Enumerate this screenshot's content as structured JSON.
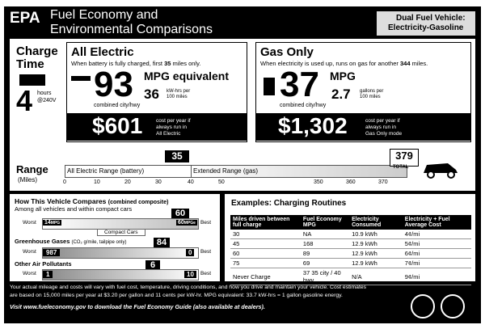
{
  "header": {
    "agency": "EPA",
    "title_line1": "Fuel Economy and",
    "title_line2": "Environmental Comparisons",
    "vehicle_type": "Dual Fuel Vehicle:",
    "fuel": "Electricity-Gasoline"
  },
  "charge_time": {
    "title_line1": "Charge",
    "title_line2": "Time",
    "hours": "4",
    "unit": "hours",
    "voltage": "@240V"
  },
  "all_electric": {
    "title": "All Electric",
    "note_before": "When battery is fully charged, first",
    "note_miles": "35",
    "note_after": "miles only.",
    "mpge": "93",
    "mpge_unit": "MPG equivalent",
    "kwh": "36",
    "kwh_unit_line1": "kW-hrs per",
    "kwh_unit_line2": "100 miles",
    "combined": "combined city/hwy",
    "cost": "$601",
    "cost_note_line1": "cost per year if",
    "cost_note_line2": "always run in",
    "cost_note_line3": "All Electric"
  },
  "gas_only": {
    "title": "Gas Only",
    "note_before": "When electricity is used up, runs on gas for another",
    "note_miles": "344",
    "note_after": "miles.",
    "mpg": "37",
    "mpg_unit": "MPG",
    "gallons": "2.7",
    "gallons_unit_line1": "gallons per",
    "gallons_unit_line2": "100 miles",
    "combined": "combined city/hwy",
    "cost": "$1,302",
    "cost_note_line1": "cost per year if",
    "cost_note_line2": "always run in",
    "cost_note_line3": "Gas Only mode"
  },
  "range": {
    "title": "Range",
    "unit": "(Miles)",
    "electric_label": "All Electric Range (battery)",
    "gas_label": "Extended Range (gas)",
    "electric_marker": "35",
    "total_marker": "379",
    "total_label": "TOTAL",
    "ticks": [
      "0",
      "10",
      "20",
      "30",
      "40",
      "50",
      "350",
      "360",
      "370"
    ]
  },
  "compare": {
    "title": "How This Vehicle Compares",
    "title_note": "(combined composite)",
    "subtitle": "Among all vehicles and within compact cars",
    "fuel": {
      "worst_label": "Worst",
      "worst": "14",
      "worst_unit": "MPG",
      "best": "60",
      "best_unit": "MPGe",
      "best_label": "Best",
      "marker": "60",
      "class": "Compact Cars"
    },
    "ghg": {
      "title": "Greenhouse Gases",
      "title_note": "(CO₂ g/mile, tailpipe only)",
      "worst_label": "Worst",
      "worst": "987",
      "best": "0",
      "best_label": "Best",
      "marker": "84"
    },
    "air": {
      "title": "Other Air Pollutants",
      "worst_label": "Worst",
      "worst": "1",
      "best": "10",
      "best_label": "Best",
      "marker": "6"
    }
  },
  "routines": {
    "title": "Examples: Charging Routines",
    "headers": [
      "Miles driven between full charge",
      "Fuel Economy MPG",
      "Electricity Consumed",
      "Electricity + Fuel Average Cost"
    ],
    "rows": [
      [
        "30",
        "NA",
        "10.9 kWh",
        "4¢/mi"
      ],
      [
        "45",
        "168",
        "12.9 kWh",
        "5¢/mi"
      ],
      [
        "60",
        "89",
        "12.9 kWh",
        "6¢/mi"
      ],
      [
        "75",
        "69",
        "12.9 kWh",
        "7¢/mi"
      ],
      [
        "Never Charge",
        "37 35 city / 40 hwy",
        "N/A",
        "9¢/mi"
      ]
    ]
  },
  "footer": {
    "line1": "Your actual mileage and costs will vary with fuel cost, temperature, driving conditions, and how you drive and maintain your vehicle. Cost estimates",
    "line2": "are based on 15,000 miles per year at $3.20 per gallon and 11 cents per kW-hr. MPG equivalent: 33.7 kW-hrs = 1 gallon gasoline energy.",
    "line3": "Visit www.fueleconomy.gov to download the Fuel Economy Guide (also available at dealers)."
  }
}
